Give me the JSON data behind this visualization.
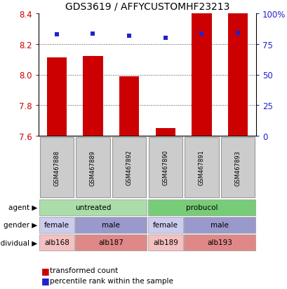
{
  "title": "GDS3619 / AFFYCUSTOMHF23213",
  "samples": [
    "GSM467888",
    "GSM467889",
    "GSM467892",
    "GSM467890",
    "GSM467891",
    "GSM467893"
  ],
  "bar_values": [
    8.11,
    8.12,
    7.99,
    7.65,
    8.4,
    8.4
  ],
  "dot_values": [
    83.0,
    83.5,
    81.5,
    80.0,
    83.5,
    84.0
  ],
  "ylim_left": [
    7.6,
    8.4
  ],
  "ylim_right": [
    0,
    100
  ],
  "yticks_left": [
    7.6,
    7.8,
    8.0,
    8.2,
    8.4
  ],
  "yticks_right": [
    0,
    25,
    50,
    75,
    100
  ],
  "ytick_labels_right": [
    "0",
    "25",
    "50",
    "75",
    "100%"
  ],
  "bar_color": "#cc0000",
  "dot_color": "#2222cc",
  "agent_labels": [
    {
      "label": "untreated",
      "span": [
        0,
        3
      ],
      "color": "#aaddaa"
    },
    {
      "label": "probucol",
      "span": [
        3,
        6
      ],
      "color": "#77cc77"
    }
  ],
  "gender_labels": [
    {
      "label": "female",
      "span": [
        0,
        1
      ],
      "color": "#ccccee"
    },
    {
      "label": "male",
      "span": [
        1,
        3
      ],
      "color": "#9999cc"
    },
    {
      "label": "female",
      "span": [
        3,
        4
      ],
      "color": "#ccccee"
    },
    {
      "label": "male",
      "span": [
        4,
        6
      ],
      "color": "#9999cc"
    }
  ],
  "individual_labels": [
    {
      "label": "alb168",
      "span": [
        0,
        1
      ],
      "color": "#f5c0c0"
    },
    {
      "label": "alb187",
      "span": [
        1,
        3
      ],
      "color": "#e08888"
    },
    {
      "label": "alb189",
      "span": [
        3,
        4
      ],
      "color": "#f5c0c0"
    },
    {
      "label": "alb193",
      "span": [
        4,
        6
      ],
      "color": "#e08888"
    }
  ],
  "legend_bar_label": "transformed count",
  "legend_dot_label": "percentile rank within the sample",
  "grid_color": "#444444",
  "sample_bg_color": "#cccccc",
  "row_labels": [
    "agent",
    "gender",
    "individual"
  ],
  "arrow_color": "#888888"
}
